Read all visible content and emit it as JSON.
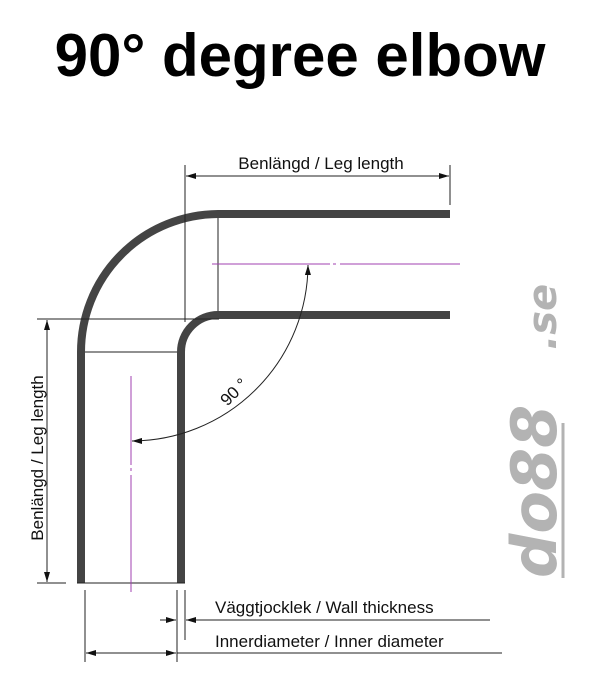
{
  "title": "90° degree elbow",
  "labels": {
    "leg_length_top": "Benlängd / Leg length",
    "leg_length_left": "Benlängd / Leg length",
    "angle": "90 °",
    "wall_thickness": "Väggtjocklek / Wall thickness",
    "inner_diameter": "Innerdiameter / Inner diameter"
  },
  "logo": {
    "main": "do88",
    "suffix": ".se"
  },
  "colors": {
    "tube": "#444444",
    "centerline": "#a040b0",
    "logo": "#b3b3b3"
  }
}
